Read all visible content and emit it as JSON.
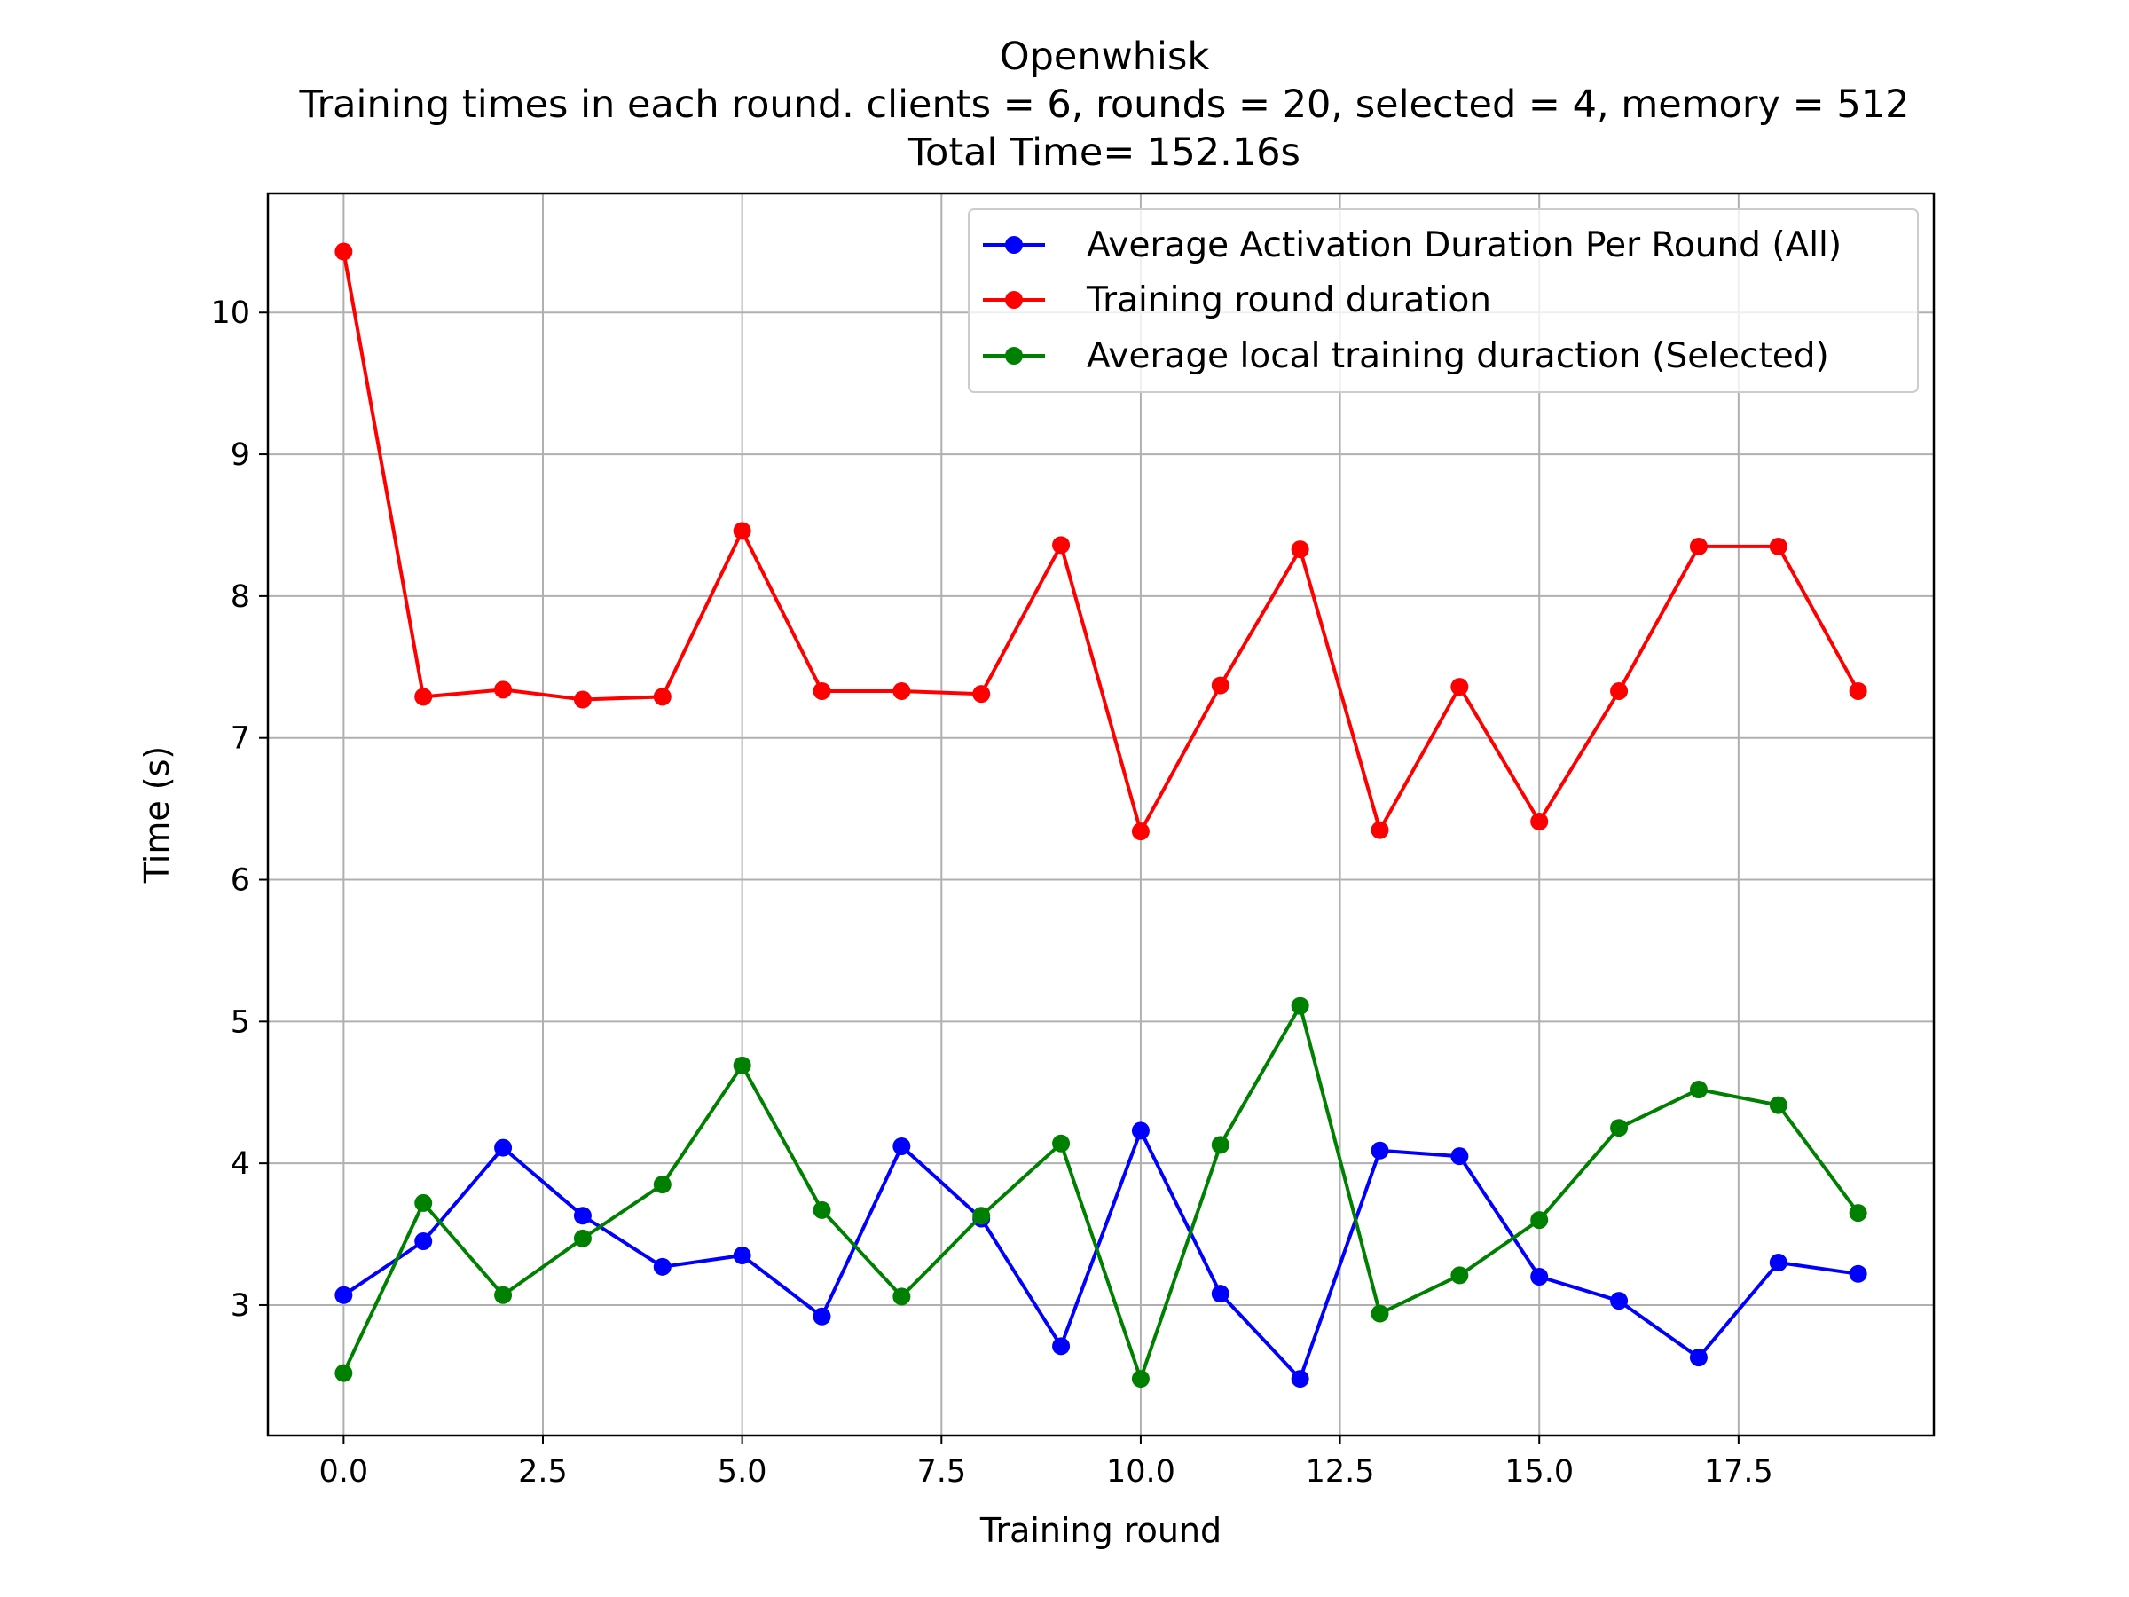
{
  "chart_data": {
    "type": "line",
    "title_lines": [
      "Openwhisk",
      "Training times in each round. clients = 6, rounds = 20, selected = 4, memory = 512",
      "Total Time= 152.16s"
    ],
    "xlabel": "Training round",
    "ylabel": "Time (s)",
    "xlim": [
      -0.95,
      19.95
    ],
    "ylim": [
      2.08,
      10.84
    ],
    "xticks": [
      0.0,
      2.5,
      5.0,
      7.5,
      10.0,
      12.5,
      15.0,
      17.5
    ],
    "xtick_labels": [
      "0.0",
      "2.5",
      "5.0",
      "7.5",
      "10.0",
      "12.5",
      "15.0",
      "17.5"
    ],
    "yticks": [
      3,
      4,
      5,
      6,
      7,
      8,
      9,
      10
    ],
    "ytick_labels": [
      "3",
      "4",
      "5",
      "6",
      "7",
      "8",
      "9",
      "10"
    ],
    "grid": true,
    "legend_position": "top-right",
    "x": [
      0,
      1,
      2,
      3,
      4,
      5,
      6,
      7,
      8,
      9,
      10,
      11,
      12,
      13,
      14,
      15,
      16,
      17,
      18,
      19
    ],
    "series": [
      {
        "name": "Average Activation Duration Per Round (All)",
        "color": "#0000ff",
        "values": [
          3.07,
          3.45,
          4.11,
          3.63,
          3.27,
          3.35,
          2.92,
          4.12,
          3.61,
          2.71,
          4.23,
          3.08,
          2.48,
          4.09,
          4.05,
          3.2,
          3.03,
          2.63,
          3.3,
          3.22
        ]
      },
      {
        "name": "Training round duration",
        "color": "#ff0000",
        "values": [
          10.43,
          7.29,
          7.34,
          7.27,
          7.29,
          8.46,
          7.33,
          7.33,
          7.31,
          8.36,
          6.34,
          7.37,
          8.33,
          6.35,
          7.36,
          6.41,
          7.33,
          8.35,
          8.35,
          7.33
        ]
      },
      {
        "name": "Average local training duraction (Selected)",
        "color": "#008000",
        "values": [
          2.52,
          3.72,
          3.07,
          3.47,
          3.85,
          4.69,
          3.67,
          3.06,
          3.63,
          4.14,
          2.48,
          4.13,
          5.11,
          2.94,
          3.21,
          3.6,
          4.25,
          4.52,
          4.41,
          3.65
        ]
      }
    ]
  }
}
